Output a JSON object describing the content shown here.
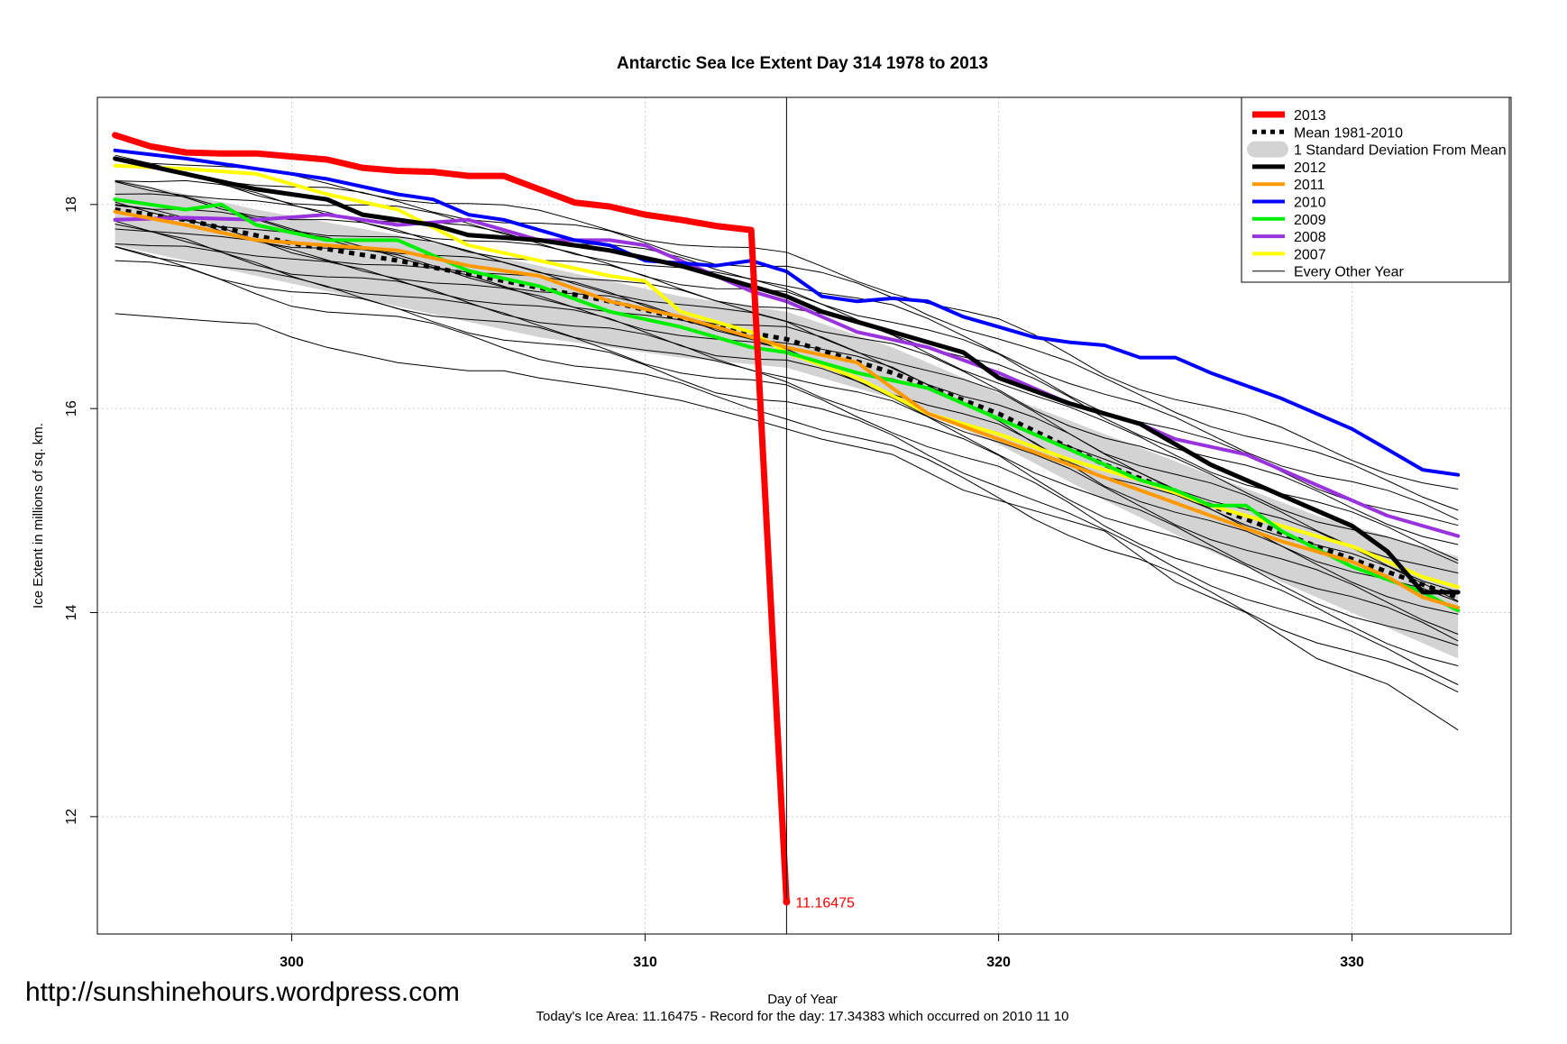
{
  "chart_data": {
    "type": "line",
    "title": "Antarctic Sea Ice Extent Day 314 1978 to 2013",
    "xlabel": "Day of Year",
    "ylabel": "Ice Extent in millions of sq. km.",
    "xlim": [
      294.5,
      334.5
    ],
    "ylim": [
      10.85,
      19.05
    ],
    "x_ticks": [
      300,
      310,
      320,
      330
    ],
    "x_tick_labels": [
      "300",
      "310",
      "320",
      "330"
    ],
    "y_ticks": [
      12,
      14,
      16,
      18
    ],
    "y_tick_labels": [
      "12",
      "14",
      "16",
      "18"
    ],
    "grid": true,
    "legend_position": "top-right",
    "current_day": 314,
    "annotation": {
      "text": "11.16475",
      "x": 314,
      "y": 11.16475,
      "color": "#ff0000"
    },
    "footer": "Today's Ice Area: 11.16475  - Record for the day: 17.34383 which occurred on 2010 11 10",
    "watermark": "http://sunshinehours.wordpress.com",
    "band": {
      "name": "1 Standard Deviation From Mean",
      "color": "#d3d3d3",
      "x": [
        295,
        299,
        303,
        307,
        311,
        314,
        317,
        320,
        323,
        326,
        329,
        333
      ],
      "upper": [
        18.25,
        17.95,
        17.7,
        17.4,
        17.1,
        16.95,
        16.6,
        16.15,
        15.75,
        15.35,
        14.95,
        14.55
      ],
      "lower": [
        17.6,
        17.3,
        17.0,
        16.7,
        16.5,
        16.4,
        16.1,
        15.65,
        15.1,
        14.6,
        14.15,
        13.55
      ]
    },
    "mean": {
      "name": "Mean 1981-2010",
      "color": "#000000",
      "x": [
        295,
        297,
        300,
        303,
        306,
        309,
        312,
        314,
        317,
        320,
        323,
        326,
        329,
        331,
        333
      ],
      "y": [
        17.95,
        17.85,
        17.62,
        17.45,
        17.25,
        17.05,
        16.8,
        16.68,
        16.35,
        15.95,
        15.45,
        15.05,
        14.65,
        14.4,
        14.15
      ]
    },
    "series": [
      {
        "name": "2013",
        "color": "#ff0000",
        "width": 7,
        "x": [
          295,
          296,
          297,
          298,
          299,
          300,
          301,
          302,
          303,
          304,
          305,
          306,
          307,
          308,
          309,
          310,
          311,
          312,
          313,
          314
        ],
        "y": [
          18.68,
          18.57,
          18.51,
          18.5,
          18.5,
          18.47,
          18.44,
          18.36,
          18.33,
          18.32,
          18.28,
          18.28,
          18.15,
          18.02,
          17.98,
          17.9,
          17.85,
          17.79,
          17.75,
          11.16475
        ]
      },
      {
        "name": "2012",
        "color": "#000000",
        "width": 5,
        "x": [
          295,
          297,
          299,
          301,
          302,
          304,
          305,
          307,
          309,
          311,
          313,
          314,
          315,
          317,
          319,
          320,
          322,
          324,
          326,
          328,
          330,
          331,
          332,
          333
        ],
        "y": [
          18.45,
          18.3,
          18.15,
          18.05,
          17.9,
          17.8,
          17.7,
          17.65,
          17.55,
          17.4,
          17.2,
          17.1,
          16.95,
          16.75,
          16.55,
          16.3,
          16.05,
          15.85,
          15.45,
          15.15,
          14.85,
          14.6,
          14.2,
          14.2
        ]
      },
      {
        "name": "2011",
        "color": "#ff9900",
        "width": 4,
        "x": [
          295,
          297,
          299,
          301,
          303,
          305,
          307,
          309,
          311,
          313,
          314,
          316,
          318,
          320,
          322,
          324,
          326,
          328,
          330,
          331,
          332,
          333
        ],
        "y": [
          17.93,
          17.8,
          17.65,
          17.6,
          17.55,
          17.4,
          17.3,
          17.05,
          16.9,
          16.7,
          16.6,
          16.45,
          15.95,
          15.7,
          15.45,
          15.2,
          14.95,
          14.7,
          14.5,
          14.35,
          14.15,
          14.05
        ]
      },
      {
        "name": "2010",
        "color": "#0000ff",
        "width": 4,
        "x": [
          295,
          297,
          299,
          301,
          303,
          304,
          305,
          306,
          308,
          309,
          310,
          312,
          313,
          314,
          315,
          316,
          317,
          318,
          319,
          320,
          321,
          322,
          323,
          324,
          325,
          326,
          328,
          330,
          331,
          332,
          333
        ],
        "y": [
          18.53,
          18.45,
          18.35,
          18.25,
          18.1,
          18.05,
          17.9,
          17.85,
          17.65,
          17.6,
          17.45,
          17.4,
          17.45,
          17.34383,
          17.1,
          17.05,
          17.08,
          17.05,
          16.9,
          16.8,
          16.7,
          16.65,
          16.62,
          16.5,
          16.5,
          16.35,
          16.1,
          15.8,
          15.6,
          15.4,
          15.35
        ]
      },
      {
        "name": "2009",
        "color": "#00ee00",
        "width": 4,
        "x": [
          295,
          297,
          298,
          299,
          301,
          303,
          305,
          307,
          309,
          311,
          313,
          314,
          316,
          318,
          320,
          322,
          324,
          325,
          326,
          327,
          328,
          330,
          332,
          333
        ],
        "y": [
          18.05,
          17.95,
          18.0,
          17.8,
          17.65,
          17.65,
          17.35,
          17.2,
          16.95,
          16.8,
          16.6,
          16.55,
          16.35,
          16.2,
          15.9,
          15.6,
          15.3,
          15.2,
          15.05,
          15.05,
          14.8,
          14.45,
          14.2,
          14.02
        ]
      },
      {
        "name": "2008",
        "color": "#9933dd",
        "width": 4,
        "x": [
          295,
          297,
          299,
          301,
          303,
          305,
          307,
          309,
          310,
          312,
          313,
          314,
          316,
          318,
          320,
          322,
          324,
          325,
          327,
          329,
          331,
          333
        ],
        "y": [
          17.85,
          17.87,
          17.85,
          17.9,
          17.8,
          17.85,
          17.65,
          17.65,
          17.6,
          17.3,
          17.15,
          17.05,
          16.75,
          16.6,
          16.35,
          16.05,
          15.85,
          15.7,
          15.55,
          15.25,
          14.95,
          14.75
        ]
      },
      {
        "name": "2007",
        "color": "#ffff00",
        "width": 4,
        "x": [
          295,
          297,
          299,
          301,
          303,
          305,
          307,
          309,
          310,
          311,
          313,
          314,
          316,
          318,
          320,
          322,
          324,
          326,
          328,
          330,
          332,
          333
        ],
        "y": [
          18.38,
          18.35,
          18.3,
          18.1,
          17.95,
          17.6,
          17.45,
          17.3,
          17.25,
          16.95,
          16.75,
          16.55,
          16.3,
          15.95,
          15.75,
          15.5,
          15.3,
          15.05,
          14.85,
          14.65,
          14.35,
          14.25
        ]
      },
      {
        "name": "Every Other Year",
        "color": "#000000",
        "width": 1,
        "legend_only": true,
        "x": [],
        "y": []
      }
    ],
    "background_years_color": "#000000"
  }
}
